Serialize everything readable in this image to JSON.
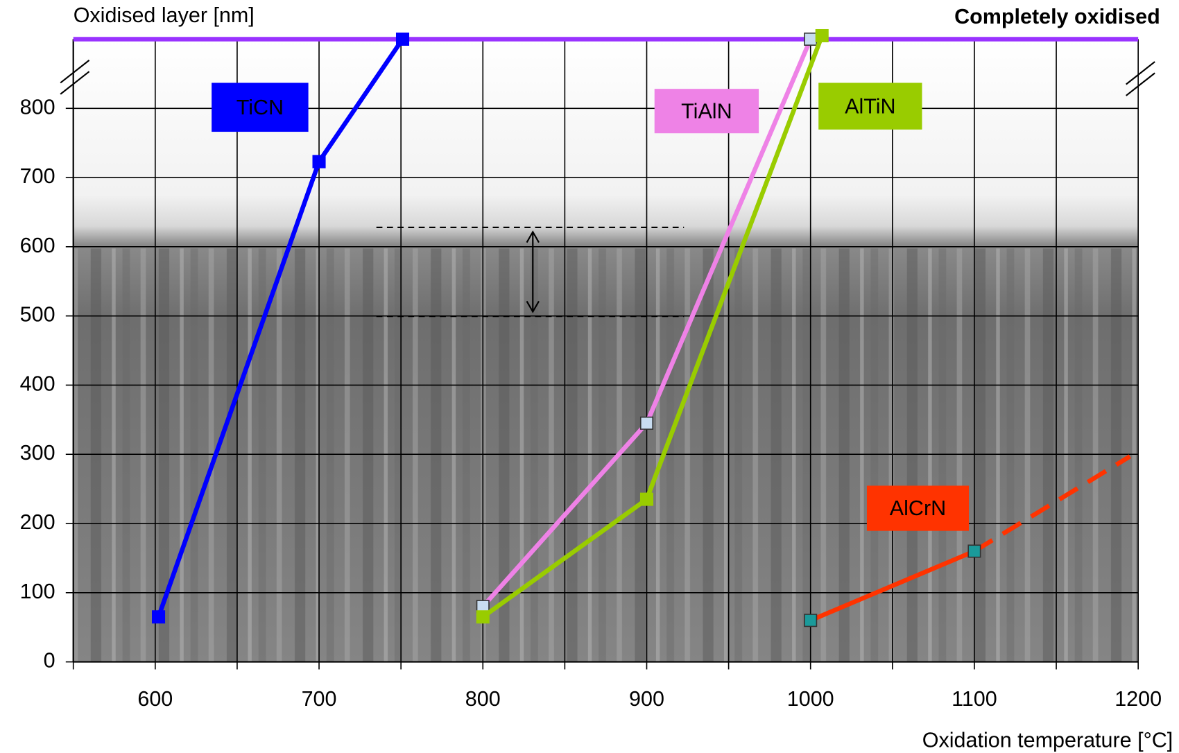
{
  "chart_data": {
    "type": "line",
    "y_label": "Oxidised layer [nm]",
    "x_label": "Oxidation temperature [°C]",
    "xlim": [
      550,
      1200
    ],
    "xticks": [
      600,
      700,
      800,
      900,
      1000,
      1100,
      1200
    ],
    "xminorticks": [
      550,
      650,
      750,
      850,
      950,
      1050,
      1150
    ],
    "ylim": [
      0,
      900
    ],
    "yticks": [
      0,
      100,
      200,
      300,
      400,
      500,
      600,
      700,
      800
    ],
    "grid": true,
    "top_line": {
      "label": "Completely oxidised",
      "value": 900,
      "color": "#9933ff"
    },
    "series": [
      {
        "name": "TiCN",
        "color": "#0000ff",
        "marker_color": "#0000ff",
        "x": [
          602,
          700,
          751
        ],
        "values": [
          65,
          723,
          900
        ]
      },
      {
        "name": "TiAlN",
        "color": "#ee82e6",
        "marker_color": "#c8dcf0",
        "x": [
          800,
          900,
          1000
        ],
        "values": [
          80,
          345,
          900
        ]
      },
      {
        "name": "AlTiN",
        "color": "#99cc00",
        "marker_color": "#99cc00",
        "x": [
          800,
          900,
          1007
        ],
        "values": [
          65,
          235,
          905
        ]
      },
      {
        "name": "AlCrN",
        "color": "#ff3300",
        "marker_color": "#1a9a9a",
        "x": [
          1000,
          1100,
          1195
        ],
        "values": [
          60,
          160,
          297
        ],
        "dashed_after_index": 1
      }
    ]
  }
}
